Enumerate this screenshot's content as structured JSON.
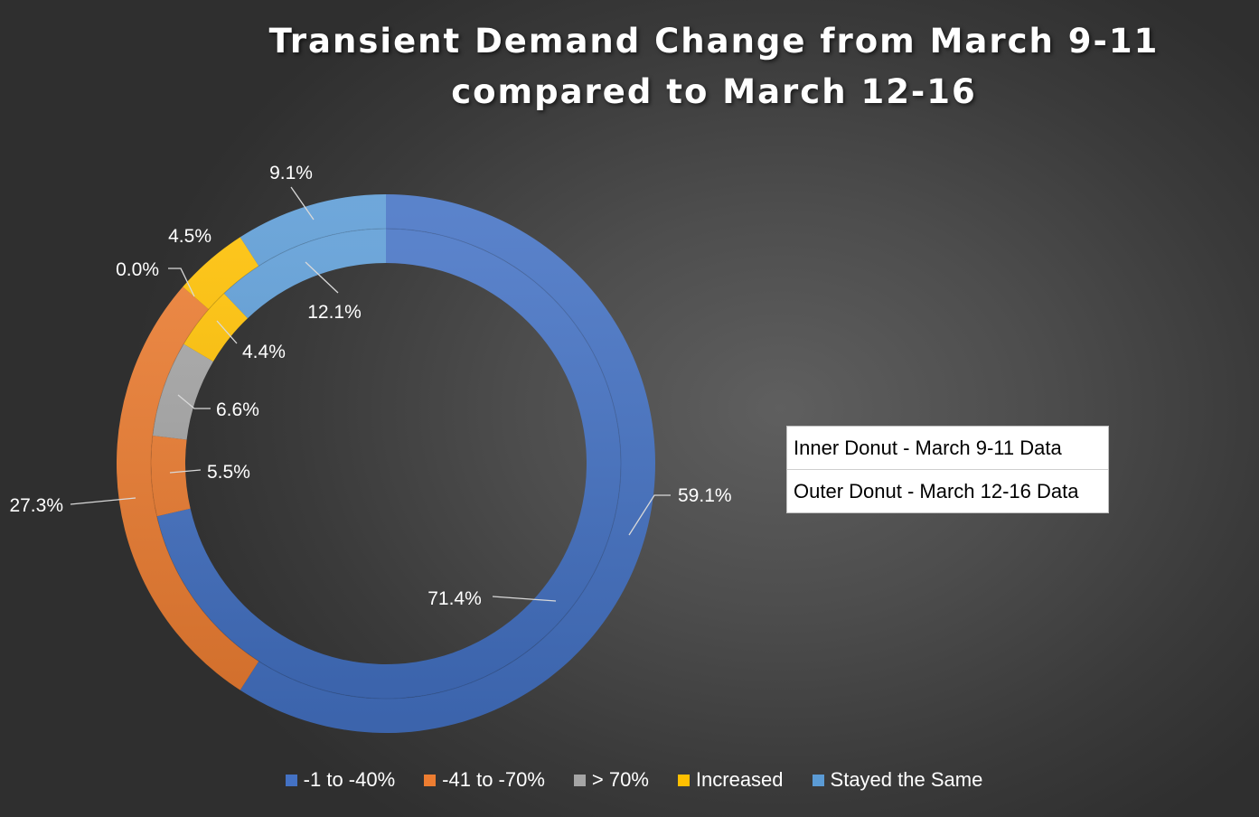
{
  "chart_data": {
    "type": "pie",
    "subtype": "double-donut",
    "title": "Transient Demand Change from March 9-11 compared to March 12-16",
    "title_lines": [
      "Transient Demand Change from March 9-11",
      "compared to March 12-16"
    ],
    "categories": [
      "-1 to -40%",
      "-41 to -70%",
      "> 70%",
      "Increased",
      "Stayed the Same"
    ],
    "colors": [
      "#4472c4",
      "#ed7d31",
      "#a5a5a5",
      "#ffc000",
      "#5b9bd5"
    ],
    "series": [
      {
        "name": "Inner Donut - March 9-11 Data",
        "ring": "inner",
        "values": [
          71.4,
          5.5,
          6.6,
          4.4,
          12.1
        ],
        "labels": [
          "71.4%",
          "5.5%",
          "6.6%",
          "4.4%",
          "12.1%"
        ]
      },
      {
        "name": "Outer Donut - March 12-16 Data",
        "ring": "outer",
        "values": [
          59.1,
          27.3,
          0.0,
          4.5,
          9.1
        ],
        "labels": [
          "59.1%",
          "27.3%",
          "0.0%",
          "4.5%",
          "9.1%"
        ]
      }
    ],
    "legend_position": "bottom",
    "annotation_box": [
      "Inner Donut - March 9-11 Data",
      "Outer Donut - March 12-16 Data"
    ]
  }
}
